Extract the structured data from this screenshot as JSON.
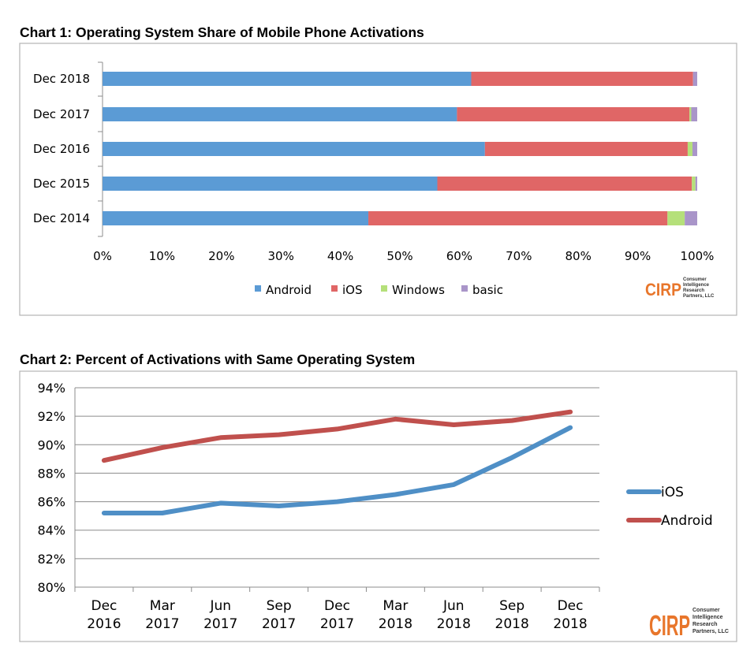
{
  "colors": {
    "Android": "#5b9bd5",
    "iOS": "#e06666",
    "Windows": "#b5e07a",
    "basic": "#a995c9",
    "line_ios": "#4f8fc6",
    "line_android": "#c0504d",
    "logo": "#e8762b"
  },
  "logo": {
    "name": "CIRP",
    "sub": [
      "Consumer",
      "Intelligence",
      "Research",
      "Partners, LLC"
    ]
  },
  "chart_data": [
    {
      "type": "bar",
      "orientation": "horizontal",
      "stacked": true,
      "title": "Chart 1: Operating System Share of Mobile Phone Activations",
      "categories": [
        "Dec 2018",
        "Dec 2017",
        "Dec 2016",
        "Dec 2015",
        "Dec 2014"
      ],
      "series": [
        {
          "name": "Android",
          "values": [
            62,
            59.6,
            64.3,
            56.3,
            44.7
          ]
        },
        {
          "name": "iOS",
          "values": [
            37.3,
            39.1,
            34.1,
            42.8,
            50.3
          ]
        },
        {
          "name": "Windows",
          "values": [
            0,
            0.3,
            0.8,
            0.6,
            2.9
          ]
        },
        {
          "name": "basic",
          "values": [
            0.7,
            1.0,
            0.8,
            0.3,
            2.1
          ]
        }
      ],
      "xlim": [
        0,
        100
      ],
      "ticks": [
        "0%",
        "10%",
        "20%",
        "30%",
        "40%",
        "50%",
        "60%",
        "70%",
        "80%",
        "90%",
        "100%"
      ],
      "legend": "bottom"
    },
    {
      "type": "line",
      "title": "Chart 2: Percent of Activations with Same Operating System",
      "categories": [
        [
          "Dec",
          "2016"
        ],
        [
          "Mar",
          "2017"
        ],
        [
          "Jun",
          "2017"
        ],
        [
          "Sep",
          "2017"
        ],
        [
          "Dec",
          "2017"
        ],
        [
          "Mar",
          "2018"
        ],
        [
          "Jun",
          "2018"
        ],
        [
          "Sep",
          "2018"
        ],
        [
          "Dec",
          "2018"
        ]
      ],
      "series": [
        {
          "name": "iOS",
          "values": [
            85.2,
            85.2,
            85.9,
            85.7,
            86.0,
            86.5,
            87.2,
            89.1,
            91.2
          ]
        },
        {
          "name": "Android",
          "values": [
            88.9,
            89.8,
            90.5,
            90.7,
            91.1,
            91.8,
            91.4,
            91.7,
            92.3
          ]
        }
      ],
      "ylim": [
        80,
        94
      ],
      "yticks": [
        "94%",
        "92%",
        "90%",
        "88%",
        "86%",
        "84%",
        "82%",
        "80%"
      ],
      "legend": "right"
    }
  ]
}
